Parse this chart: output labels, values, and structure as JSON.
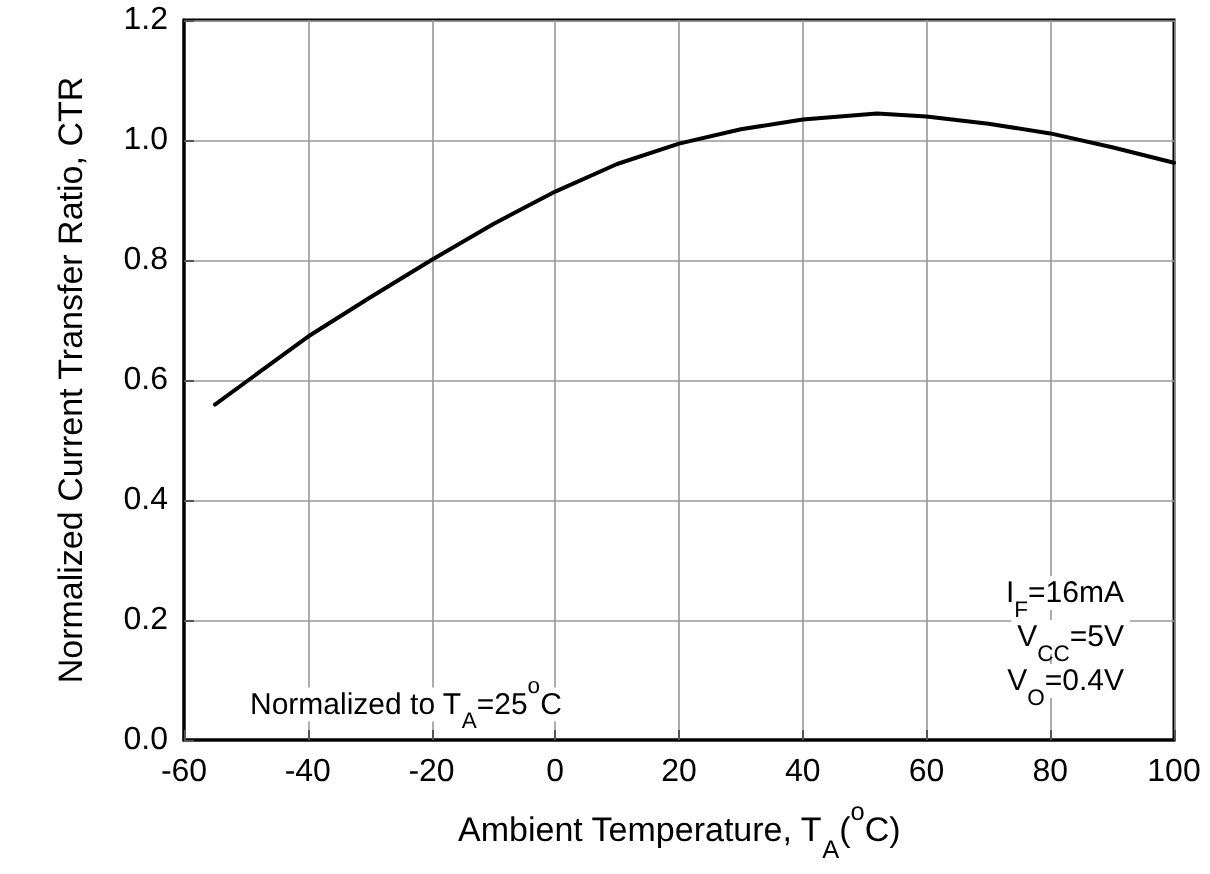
{
  "chart_data": {
    "type": "line",
    "xlabel": "Ambient Temperature, T$_{A}$($^{o}$C)",
    "ylabel": "Normalized Current Transfer Ratio, CTR",
    "x": [
      -55,
      -40,
      -30,
      -20,
      -10,
      0,
      10,
      20,
      30,
      40,
      52,
      60,
      70,
      80,
      90,
      100
    ],
    "series": [
      {
        "color": "#000000",
        "values": [
          0.559,
          0.672,
          0.737,
          0.8,
          0.86,
          0.914,
          0.96,
          0.994,
          1.018,
          1.034,
          1.044,
          1.039,
          1.027,
          1.011,
          0.988,
          0.962
        ]
      }
    ],
    "xlim": [
      -60,
      100
    ],
    "xticks": [
      -60,
      -40,
      -20,
      0,
      20,
      40,
      60,
      80,
      100
    ],
    "ylim": [
      0,
      1.2
    ],
    "yticks": [
      "0.0",
      0.2,
      0.4,
      0.6,
      0.8,
      "1.0",
      1.2
    ],
    "grid": true,
    "marker": "none",
    "line_style": "solid",
    "annotations": [
      "Normalized to T$_{A}$=25$^{o}$C",
      "I$_{F}$=16mA",
      "V$_{CC}$=5V",
      "V$_{O}$=0.4V"
    ]
  }
}
